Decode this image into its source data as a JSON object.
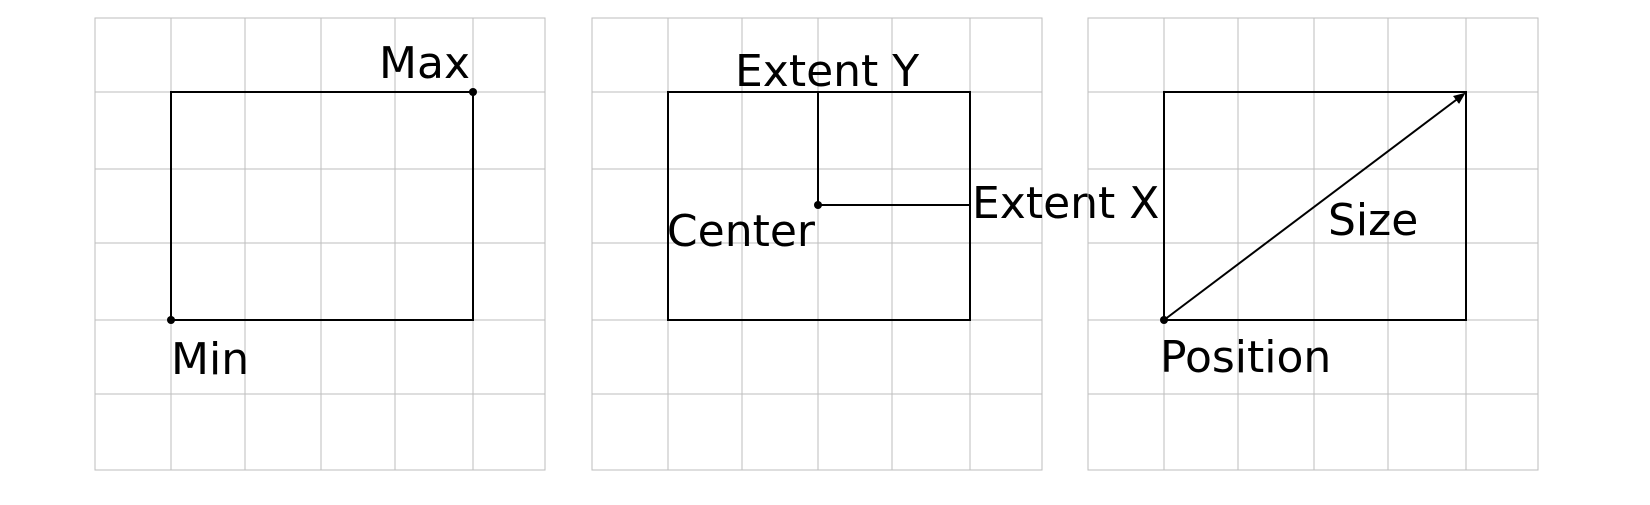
{
  "colors": {
    "grid": "#bdbdbd",
    "stroke": "#000000",
    "background": "#ffffff"
  },
  "panels": [
    {
      "id": "min-max",
      "labels": {
        "max": "Max",
        "min": "Min"
      }
    },
    {
      "id": "center-extents",
      "labels": {
        "extent_y": "Extent Y",
        "extent_x": "Extent X",
        "center": "Center"
      }
    },
    {
      "id": "position-size",
      "labels": {
        "size": "Size",
        "position": "Position"
      }
    }
  ]
}
